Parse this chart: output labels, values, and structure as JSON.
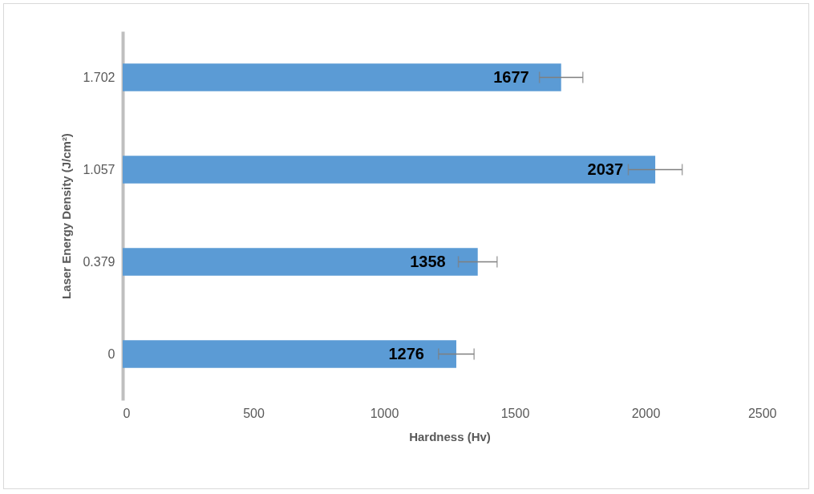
{
  "chart_data": {
    "type": "bar",
    "orientation": "horizontal",
    "xlabel": "Hardness (Hv)",
    "ylabel": "Laser Energy Density (J/cm²)",
    "categories": [
      "1.702",
      "1.057",
      "0.379",
      "0"
    ],
    "values": [
      1677,
      2037,
      1358,
      1276
    ],
    "errors": [
      83,
      103,
      74,
      68
    ],
    "color": "#5b9bd5",
    "xlim": [
      0,
      2500
    ],
    "xticks": [
      0,
      500,
      1000,
      1500,
      2000,
      2500
    ],
    "data_labels": true,
    "grid": false
  }
}
